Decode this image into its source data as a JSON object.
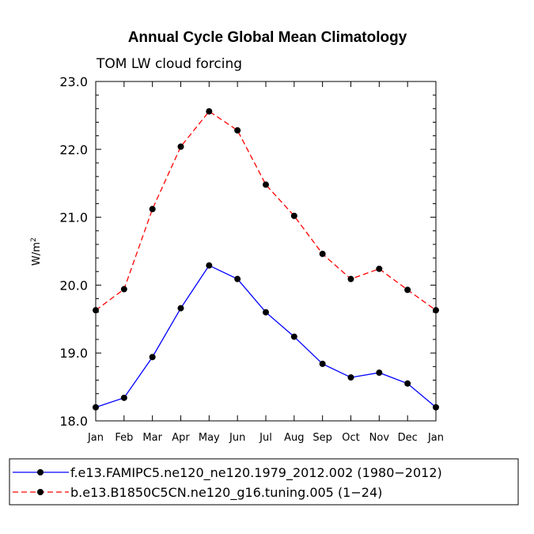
{
  "chart_data": {
    "type": "line",
    "title": "Annual Cycle Global Mean Climatology",
    "subtitle": "TOM LW cloud forcing",
    "ylabel": "W/m",
    "ylabel_sup": "2",
    "xlabel": "",
    "ylim": [
      18.0,
      23.0
    ],
    "yticks": [
      "18.0",
      "19.0",
      "20.0",
      "21.0",
      "22.0",
      "23.0"
    ],
    "categories": [
      "Jan",
      "Feb",
      "Mar",
      "Apr",
      "May",
      "Jun",
      "Jul",
      "Aug",
      "Sep",
      "Oct",
      "Nov",
      "Dec",
      "Jan"
    ],
    "series": [
      {
        "name": "f.e13.FAMIPC5.ne120_ne120.1979_2012.002 (1980-2012)",
        "color": "#0000ff",
        "dash": "solid",
        "values": [
          18.2,
          18.34,
          18.94,
          19.66,
          20.29,
          20.09,
          19.6,
          19.24,
          18.84,
          18.64,
          18.71,
          18.55,
          18.2
        ]
      },
      {
        "name": "b.e13.B1850C5CN.ne120_g16.tuning.005 (1-24)",
        "color": "#ff0000",
        "dash": "dashed",
        "values": [
          19.63,
          19.94,
          21.12,
          22.04,
          22.56,
          22.28,
          21.48,
          21.02,
          20.46,
          20.09,
          20.24,
          19.93,
          19.63
        ]
      }
    ]
  }
}
